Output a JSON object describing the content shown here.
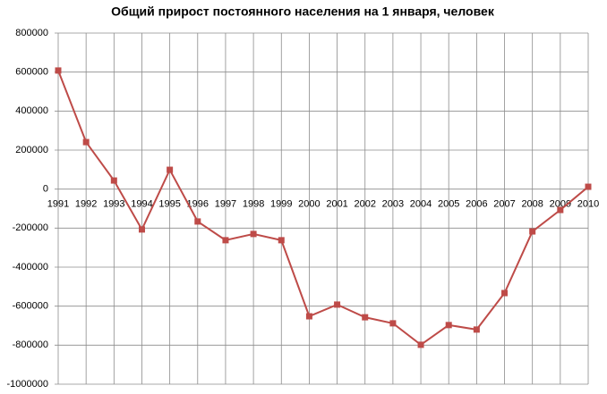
{
  "chart_data": {
    "type": "line",
    "title": "Общий прирост постоянного населения на  1 января, человек",
    "categories": [
      "1991",
      "1992",
      "1993",
      "1994",
      "1995",
      "1996",
      "1997",
      "1998",
      "1999",
      "2000",
      "2001",
      "2002",
      "2003",
      "2004",
      "2005",
      "2006",
      "2007",
      "2008",
      "2009",
      "2010"
    ],
    "series": [
      {
        "name": "Общий прирост",
        "color": "#be4b48",
        "values": [
          608000,
          241000,
          44000,
          -207000,
          99000,
          -166000,
          -262000,
          -230000,
          -262000,
          -652000,
          -592000,
          -657000,
          -688000,
          -798000,
          -697000,
          -720000,
          -533000,
          -217000,
          -107000,
          12000
        ]
      }
    ],
    "ylim": [
      -1000000,
      800000
    ],
    "yticks": [
      -1000000,
      -800000,
      -600000,
      -400000,
      -200000,
      0,
      200000,
      400000,
      600000,
      800000
    ],
    "grid": true
  }
}
